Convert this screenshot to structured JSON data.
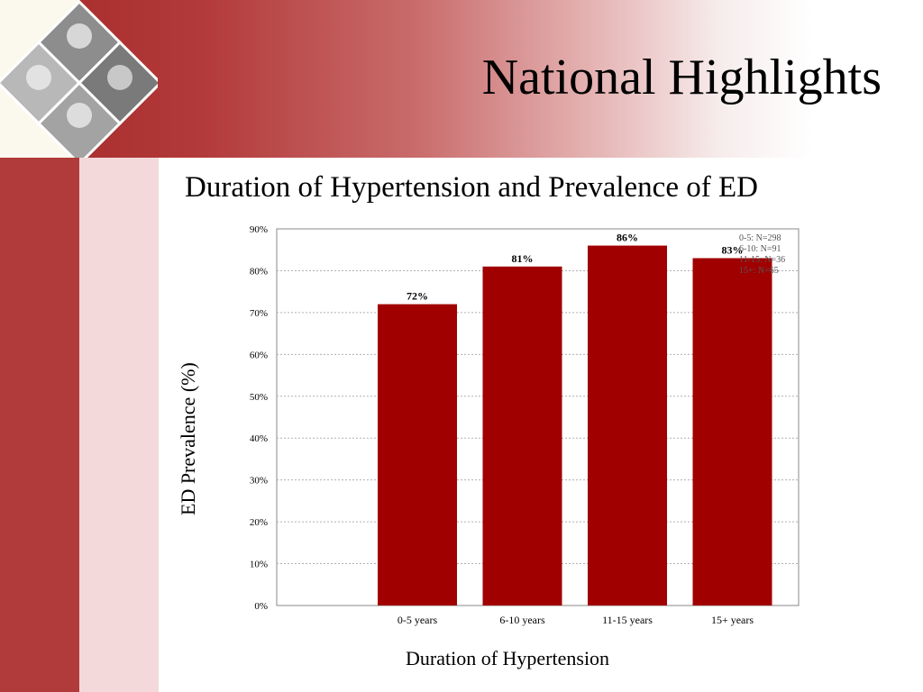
{
  "slide": {
    "title": "National Highlights"
  },
  "icons": {
    "logo": "portrait-collage-icon"
  },
  "colors": {
    "brand": "#a52a2a",
    "bar": "#a00000"
  },
  "chart_data": {
    "type": "bar",
    "title": "Duration of Hypertension and Prevalence of ED",
    "xlabel": "Duration of Hypertension",
    "ylabel": "ED Prevalence (%)",
    "categories": [
      "0-5 years",
      "6-10 years",
      "11-15 years",
      "15+ years"
    ],
    "values": [
      72,
      81,
      86,
      83
    ],
    "value_labels": [
      "72%",
      "81%",
      "86%",
      "83%"
    ],
    "ylim": [
      0,
      90
    ],
    "yticks": [
      "0%",
      "10%",
      "20%",
      "30%",
      "40%",
      "50%",
      "60%",
      "70%",
      "80%",
      "90%"
    ],
    "grid": true,
    "legend_position": "top-right",
    "legend": [
      "0-5:  N=298",
      "6-10:  N=91",
      "11-15:  N=36",
      "15+:  N=65"
    ]
  }
}
